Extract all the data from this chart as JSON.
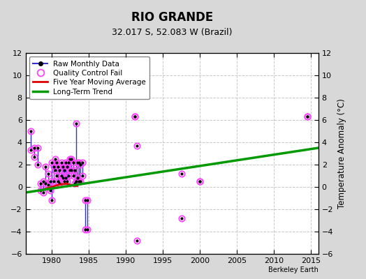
{
  "title": "RIO GRANDE",
  "subtitle": "32.017 S, 52.083 W (Brazil)",
  "watermark": "Berkeley Earth",
  "xlim": [
    1976.5,
    2016
  ],
  "ylim": [
    -6,
    12
  ],
  "yticks": [
    -6,
    -4,
    -2,
    0,
    2,
    4,
    6,
    8,
    10,
    12
  ],
  "xticks": [
    1980,
    1985,
    1990,
    1995,
    2000,
    2005,
    2010,
    2015
  ],
  "ylabel": "Temperature Anomaly (°C)",
  "bg_color": "#d8d8d8",
  "plot_bg_color": "#ffffff",
  "grid_color": "#bbbbbb",
  "raw_color": "#3333cc",
  "raw_marker_color": "#000000",
  "qc_color": "#ff44ff",
  "ma_color": "#dd0000",
  "trend_color": "#009900",
  "legend_labels": [
    "Raw Monthly Data",
    "Quality Control Fail",
    "Five Year Moving Average",
    "Long-Term Trend"
  ],
  "trend_x": [
    1976.5,
    2016
  ],
  "trend_y": [
    -0.5,
    3.5
  ],
  "five_year_ma_x": [
    1979.0,
    1980.0,
    1981.0,
    1982.0,
    1982.5,
    1983.0,
    1983.5
  ],
  "five_year_ma_y": [
    -0.2,
    0.0,
    0.2,
    0.3,
    0.2,
    0.1,
    0.1
  ],
  "raw_segments": [
    [
      [
        1977.2,
        5.0
      ],
      [
        1977.2,
        3.3
      ]
    ],
    [
      [
        1977.7,
        3.5
      ],
      [
        1977.7,
        2.7
      ]
    ],
    [
      [
        1978.1,
        3.5
      ],
      [
        1978.1,
        2.0
      ]
    ],
    [
      [
        1978.5,
        0.3
      ],
      [
        1978.5,
        -0.3
      ]
    ],
    [
      [
        1978.9,
        0.5
      ],
      [
        1978.9,
        -0.5
      ]
    ],
    [
      [
        1979.2,
        1.8
      ],
      [
        1979.2,
        0.3
      ]
    ],
    [
      [
        1979.5,
        1.2
      ],
      [
        1979.5,
        0.2
      ]
    ],
    [
      [
        1979.8,
        0.5
      ],
      [
        1979.8,
        -0.3
      ]
    ],
    [
      [
        1980.0,
        2.2
      ],
      [
        1980.0,
        -1.2
      ]
    ],
    [
      [
        1980.3,
        1.8
      ],
      [
        1980.3,
        0.5
      ]
    ],
    [
      [
        1980.5,
        2.5
      ],
      [
        1980.5,
        1.5
      ]
    ],
    [
      [
        1980.7,
        2.2
      ],
      [
        1980.7,
        1.0
      ]
    ],
    [
      [
        1980.9,
        1.8
      ],
      [
        1980.9,
        0.5
      ]
    ],
    [
      [
        1981.1,
        1.5
      ],
      [
        1981.1,
        0.3
      ]
    ],
    [
      [
        1981.3,
        2.2
      ],
      [
        1981.3,
        1.0
      ]
    ],
    [
      [
        1981.5,
        1.8
      ],
      [
        1981.5,
        0.8
      ]
    ],
    [
      [
        1981.7,
        1.5
      ],
      [
        1981.7,
        0.5
      ]
    ],
    [
      [
        1981.9,
        2.2
      ],
      [
        1981.9,
        0.8
      ]
    ],
    [
      [
        1982.1,
        1.8
      ],
      [
        1982.1,
        0.5
      ]
    ],
    [
      [
        1982.3,
        2.2
      ],
      [
        1982.3,
        1.0
      ]
    ],
    [
      [
        1982.5,
        2.5
      ],
      [
        1982.5,
        1.5
      ]
    ],
    [
      [
        1982.7,
        2.5
      ],
      [
        1982.7,
        1.5
      ]
    ],
    [
      [
        1982.9,
        2.2
      ],
      [
        1982.9,
        1.0
      ]
    ],
    [
      [
        1983.1,
        1.5
      ],
      [
        1983.1,
        0.3
      ]
    ],
    [
      [
        1983.3,
        5.7
      ],
      [
        1983.3,
        0.5
      ]
    ],
    [
      [
        1983.5,
        2.2
      ],
      [
        1983.5,
        0.8
      ]
    ],
    [
      [
        1983.7,
        2.2
      ],
      [
        1983.7,
        0.5
      ]
    ],
    [
      [
        1983.9,
        2.0
      ],
      [
        1983.9,
        0.5
      ]
    ],
    [
      [
        1984.2,
        2.2
      ],
      [
        1984.2,
        1.0
      ]
    ],
    [
      [
        1984.5,
        -1.2
      ],
      [
        1984.5,
        -3.8
      ]
    ],
    [
      [
        1984.8,
        -1.2
      ],
      [
        1984.8,
        -3.8
      ]
    ]
  ],
  "all_points_x": [
    1977.2,
    1977.7,
    1978.1,
    1978.5,
    1978.9,
    1979.2,
    1979.5,
    1979.8,
    1980.0,
    1980.3,
    1980.5,
    1980.7,
    1980.9,
    1981.1,
    1981.3,
    1981.5,
    1981.7,
    1981.9,
    1982.1,
    1982.3,
    1982.5,
    1982.7,
    1982.9,
    1983.1,
    1983.3,
    1983.5,
    1983.7,
    1983.9,
    1984.2,
    1984.5,
    1984.8,
    1991.2,
    1991.5,
    1997.5,
    2000.0,
    2014.5
  ],
  "all_points_y_top": [
    5.0,
    3.5,
    3.5,
    0.3,
    0.5,
    1.8,
    1.2,
    0.5,
    2.2,
    1.8,
    2.5,
    2.2,
    1.8,
    1.5,
    2.2,
    1.8,
    1.5,
    2.2,
    1.8,
    2.2,
    2.5,
    2.5,
    2.2,
    1.5,
    5.7,
    2.2,
    2.2,
    2.0,
    2.2,
    -1.2,
    -1.2,
    6.3,
    3.7,
    1.2,
    0.5,
    6.3
  ],
  "all_points_y_bot": [
    3.3,
    2.7,
    2.0,
    -0.3,
    -0.5,
    0.3,
    0.2,
    -0.3,
    -1.2,
    0.5,
    1.5,
    1.0,
    0.5,
    0.3,
    1.0,
    0.8,
    0.5,
    0.8,
    0.5,
    1.0,
    1.5,
    1.5,
    1.0,
    0.3,
    0.5,
    0.8,
    0.5,
    0.5,
    1.0,
    -3.8,
    -3.8,
    6.3,
    -4.8,
    -2.8,
    0.5,
    6.3
  ]
}
